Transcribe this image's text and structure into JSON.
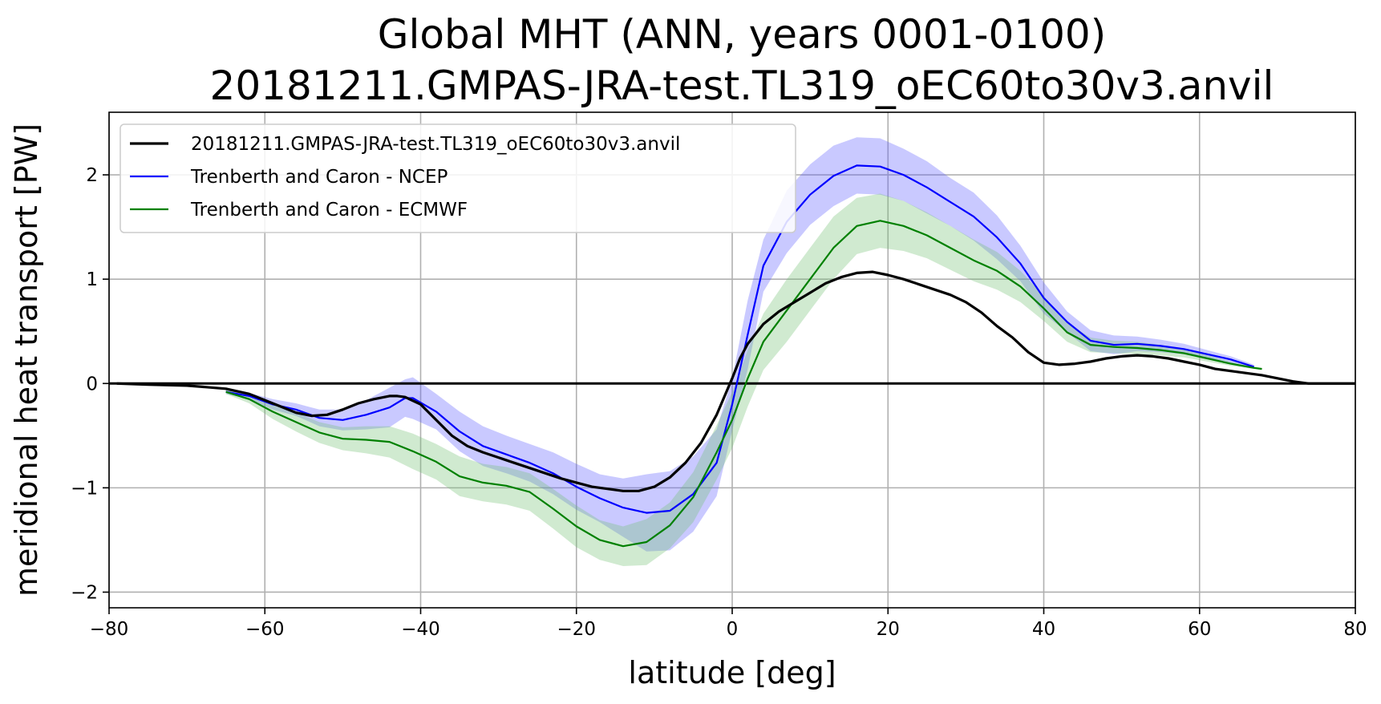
{
  "chart_data": {
    "type": "line",
    "title_line1": "Global MHT (ANN, years 0001-0100)",
    "title_line2": "20181211.GMPAS-JRA-test.TL319_oEC60to30v3.anvil",
    "xlabel": "latitude [deg]",
    "ylabel": "meridional heat transport [PW]",
    "xlim": [
      -80,
      80
    ],
    "ylim": [
      -2.15,
      2.6
    ],
    "xticks": [
      -80,
      -60,
      -40,
      -20,
      0,
      20,
      40,
      60,
      80
    ],
    "xtick_labels": [
      "−80",
      "−60",
      "−40",
      "−20",
      "0",
      "20",
      "40",
      "60",
      "80"
    ],
    "yticks": [
      -2,
      -1,
      0,
      1,
      2
    ],
    "ytick_labels": [
      "−2",
      "−1",
      "0",
      "1",
      "2"
    ],
    "grid": true,
    "legend_position": "top-left",
    "zero_line": 0,
    "series": [
      {
        "name": "20181211.GMPAS-JRA-test.TL319_oEC60to30v3.anvil",
        "color": "#000000",
        "x": [
          -79,
          -75,
          -70,
          -65,
          -62,
          -60,
          -58,
          -56,
          -54,
          -52,
          -50,
          -48,
          -46,
          -44,
          -43,
          -42,
          -40,
          -38,
          -36,
          -34,
          -32,
          -30,
          -28,
          -26,
          -24,
          -22,
          -20,
          -18,
          -16,
          -14,
          -12,
          -10,
          -8,
          -6,
          -4,
          -2,
          0,
          1,
          2,
          4,
          6,
          8,
          10,
          12,
          14,
          16,
          18,
          20,
          22,
          24,
          26,
          28,
          30,
          32,
          34,
          36,
          38,
          40,
          42,
          44,
          46,
          48,
          50,
          52,
          54,
          56,
          58,
          60,
          62,
          64,
          66,
          68,
          70,
          72,
          74,
          76,
          78,
          80
        ],
        "y": [
          0.0,
          -0.01,
          -0.02,
          -0.05,
          -0.1,
          -0.16,
          -0.22,
          -0.28,
          -0.31,
          -0.3,
          -0.25,
          -0.19,
          -0.15,
          -0.12,
          -0.12,
          -0.13,
          -0.2,
          -0.35,
          -0.5,
          -0.6,
          -0.66,
          -0.71,
          -0.76,
          -0.81,
          -0.86,
          -0.91,
          -0.95,
          -0.99,
          -1.01,
          -1.03,
          -1.03,
          -0.99,
          -0.9,
          -0.76,
          -0.57,
          -0.3,
          0.05,
          0.24,
          0.38,
          0.57,
          0.69,
          0.78,
          0.87,
          0.96,
          1.02,
          1.06,
          1.07,
          1.04,
          1.0,
          0.95,
          0.9,
          0.85,
          0.78,
          0.68,
          0.55,
          0.44,
          0.3,
          0.2,
          0.18,
          0.19,
          0.21,
          0.24,
          0.26,
          0.27,
          0.26,
          0.24,
          0.21,
          0.18,
          0.14,
          0.12,
          0.1,
          0.08,
          0.05,
          0.02,
          0.0,
          0.0,
          0.0,
          0.0
        ]
      },
      {
        "name": "Trenberth and Caron - NCEP",
        "color": "#0000ff",
        "band_color": "#5a5aff",
        "x": [
          -65,
          -62,
          -59,
          -56,
          -53,
          -50,
          -47,
          -44,
          -42,
          -41,
          -38,
          -35,
          -32,
          -29,
          -26,
          -23,
          -20,
          -17,
          -14,
          -11,
          -8,
          -5,
          -2,
          0,
          2,
          4,
          7,
          10,
          13,
          16,
          19,
          22,
          25,
          28,
          31,
          34,
          37,
          40,
          43,
          46,
          49,
          52,
          55,
          58,
          61,
          64,
          67
        ],
        "y": [
          -0.08,
          -0.12,
          -0.2,
          -0.25,
          -0.33,
          -0.35,
          -0.3,
          -0.23,
          -0.14,
          -0.14,
          -0.27,
          -0.46,
          -0.6,
          -0.68,
          -0.76,
          -0.86,
          -0.99,
          -1.1,
          -1.19,
          -1.24,
          -1.22,
          -1.06,
          -0.76,
          -0.2,
          0.47,
          1.13,
          1.55,
          1.81,
          1.99,
          2.09,
          2.08,
          2.0,
          1.88,
          1.74,
          1.6,
          1.4,
          1.15,
          0.82,
          0.59,
          0.41,
          0.37,
          0.38,
          0.36,
          0.33,
          0.28,
          0.23,
          0.16
        ],
        "upper": [
          -0.06,
          -0.09,
          -0.15,
          -0.19,
          -0.25,
          -0.25,
          -0.16,
          -0.04,
          0.04,
          0.06,
          -0.1,
          -0.27,
          -0.41,
          -0.5,
          -0.58,
          -0.66,
          -0.77,
          -0.87,
          -0.91,
          -0.87,
          -0.84,
          -0.7,
          -0.44,
          0.05,
          0.8,
          1.38,
          1.85,
          2.1,
          2.28,
          2.36,
          2.35,
          2.25,
          2.13,
          1.97,
          1.83,
          1.61,
          1.32,
          0.97,
          0.69,
          0.51,
          0.46,
          0.45,
          0.42,
          0.38,
          0.32,
          0.26,
          0.18
        ],
        "lower": [
          -0.1,
          -0.15,
          -0.25,
          -0.31,
          -0.41,
          -0.45,
          -0.44,
          -0.42,
          -0.32,
          -0.34,
          -0.44,
          -0.65,
          -0.79,
          -0.86,
          -0.94,
          -1.06,
          -1.21,
          -1.33,
          -1.47,
          -1.61,
          -1.6,
          -1.42,
          -1.08,
          -0.45,
          0.14,
          0.88,
          1.25,
          1.52,
          1.7,
          1.82,
          1.81,
          1.75,
          1.63,
          1.51,
          1.37,
          1.19,
          0.98,
          0.67,
          0.49,
          0.31,
          0.28,
          0.31,
          0.3,
          0.28,
          0.24,
          0.2,
          0.14
        ]
      },
      {
        "name": "Trenberth and Caron - ECMWF",
        "color": "#008000",
        "band_color": "#6fbf6f",
        "x": [
          -65,
          -62,
          -59,
          -56,
          -53,
          -50,
          -47,
          -44,
          -41,
          -38,
          -35,
          -32,
          -29,
          -26,
          -23,
          -20,
          -17,
          -14,
          -11,
          -8,
          -5,
          -2,
          0,
          2,
          4,
          7,
          10,
          13,
          16,
          19,
          22,
          25,
          28,
          31,
          34,
          37,
          40,
          43,
          46,
          49,
          52,
          55,
          58,
          61,
          64,
          67,
          68
        ],
        "y": [
          -0.08,
          -0.15,
          -0.27,
          -0.37,
          -0.47,
          -0.53,
          -0.54,
          -0.56,
          -0.65,
          -0.75,
          -0.89,
          -0.95,
          -0.98,
          -1.04,
          -1.2,
          -1.37,
          -1.5,
          -1.56,
          -1.52,
          -1.36,
          -1.09,
          -0.66,
          -0.35,
          0.05,
          0.4,
          0.7,
          1.0,
          1.3,
          1.51,
          1.56,
          1.51,
          1.42,
          1.3,
          1.18,
          1.08,
          0.93,
          0.72,
          0.49,
          0.37,
          0.35,
          0.34,
          0.32,
          0.29,
          0.24,
          0.19,
          0.15,
          0.14
        ],
        "upper": [
          -0.06,
          -0.11,
          -0.2,
          -0.28,
          -0.37,
          -0.42,
          -0.41,
          -0.41,
          -0.48,
          -0.58,
          -0.7,
          -0.77,
          -0.8,
          -0.86,
          -1.01,
          -1.17,
          -1.31,
          -1.37,
          -1.3,
          -1.14,
          -0.85,
          -0.4,
          -0.08,
          0.32,
          0.67,
          1.0,
          1.3,
          1.6,
          1.78,
          1.82,
          1.75,
          1.64,
          1.51,
          1.38,
          1.26,
          1.08,
          0.84,
          0.58,
          0.44,
          0.41,
          0.4,
          0.37,
          0.33,
          0.27,
          0.21,
          0.16,
          0.15
        ],
        "lower": [
          -0.1,
          -0.19,
          -0.34,
          -0.46,
          -0.57,
          -0.64,
          -0.67,
          -0.71,
          -0.82,
          -0.92,
          -1.08,
          -1.13,
          -1.16,
          -1.22,
          -1.39,
          -1.57,
          -1.69,
          -1.75,
          -1.74,
          -1.58,
          -1.33,
          -0.92,
          -0.62,
          -0.22,
          0.13,
          0.4,
          0.7,
          1.0,
          1.24,
          1.3,
          1.27,
          1.2,
          1.09,
          0.98,
          0.9,
          0.78,
          0.6,
          0.4,
          0.3,
          0.29,
          0.28,
          0.27,
          0.25,
          0.21,
          0.17,
          0.14,
          0.13
        ]
      }
    ]
  }
}
